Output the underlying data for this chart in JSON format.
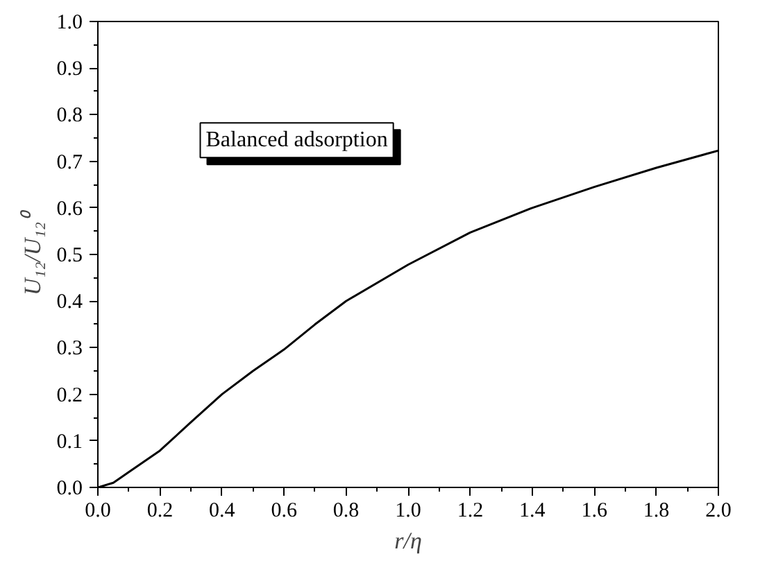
{
  "chart_data": {
    "type": "line",
    "xlabel": "r/η",
    "ylabel": "U₁₂/U₁₂⁰",
    "annotations": [
      "Balanced adsorption"
    ],
    "x": [
      0.0,
      0.05,
      0.1,
      0.2,
      0.3,
      0.4,
      0.5,
      0.6,
      0.7,
      0.8,
      1.0,
      1.2,
      1.4,
      1.6,
      1.8,
      2.0
    ],
    "series": [
      {
        "color": "#000000",
        "values": [
          0.0,
          0.01,
          0.033,
          0.079,
          0.14,
          0.2,
          0.25,
          0.296,
          0.35,
          0.4,
          0.478,
          0.547,
          0.6,
          0.645,
          0.686,
          0.723
        ]
      }
    ],
    "xlim": [
      0.0,
      2.0
    ],
    "ylim": [
      0.0,
      1.0
    ],
    "xticks": [
      {
        "value": 0.0,
        "label": "0.0"
      },
      0.2,
      0.4,
      0.6,
      0.8,
      {
        "value": 1.0,
        "label": "1.0"
      },
      1.2,
      1.4,
      1.6,
      1.8,
      {
        "value": 2.0,
        "label": "2.0"
      }
    ],
    "yticks": [
      {
        "value": 0.0,
        "label": "0.0"
      },
      0.1,
      0.2,
      0.3,
      0.4,
      0.5,
      0.6,
      0.7,
      0.8,
      0.9,
      {
        "value": 1.0,
        "label": "1.0"
      }
    ],
    "grid": false,
    "marker": "none",
    "line_style": "solid"
  }
}
